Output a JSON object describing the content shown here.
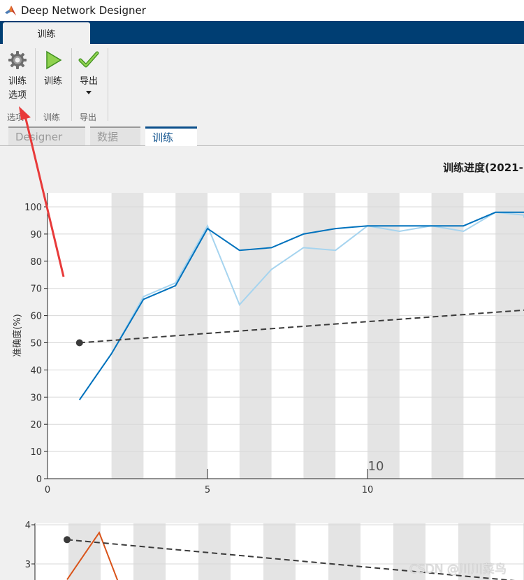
{
  "window": {
    "title": "Deep Network Designer"
  },
  "ribbon": {
    "tab_label": "训练"
  },
  "toolstrip": {
    "buttons": [
      {
        "label": "训练\n选项",
        "icon": "gear-icon",
        "group": "选项"
      },
      {
        "label": "训练",
        "icon": "play-icon",
        "group": "训练"
      },
      {
        "label": "导出",
        "icon": "checkmark-icon",
        "group": "导出"
      }
    ]
  },
  "doc_tabs": [
    {
      "label": "Designer",
      "active": false
    },
    {
      "label": "数据",
      "active": false
    },
    {
      "label": "训练",
      "active": true
    }
  ],
  "progress": {
    "title": "训练进度(2021-"
  },
  "colors": {
    "accent": "#0b4f8b",
    "ribbon": "#003e73",
    "accuracy_smoothed": "#0072bd",
    "accuracy_raw": "#a6d4ef",
    "loss": "#d95319",
    "annotation_arrow": "#e83a3a"
  },
  "chart_data": [
    {
      "type": "line",
      "ylabel": "准确度(%)",
      "xlim": [
        0,
        16
      ],
      "ylim": [
        0,
        100
      ],
      "x_ticks": [
        0,
        5,
        10
      ],
      "y_ticks": [
        0,
        10,
        20,
        30,
        40,
        50,
        60,
        70,
        80,
        90,
        100
      ],
      "epoch_band_label": "10",
      "series": [
        {
          "x": [
            1,
            2,
            3,
            4,
            5,
            6,
            7,
            8,
            9,
            10,
            11,
            12,
            13,
            14,
            15,
            16
          ],
          "values": [
            29,
            46,
            66,
            71,
            92,
            84,
            85,
            90,
            92,
            93,
            93,
            93,
            93,
            98,
            98,
            98
          ]
        },
        {
          "x": [
            1,
            2,
            3,
            4,
            5,
            6,
            7,
            8,
            9,
            10,
            11,
            12,
            13,
            14,
            15,
            16
          ],
          "values": [
            29,
            46,
            67,
            72,
            93,
            64,
            77,
            85,
            84,
            93,
            91,
            93,
            91,
            98,
            97,
            96
          ]
        },
        {
          "x": [
            1,
            16
          ],
          "values": [
            50,
            62
          ]
        }
      ],
      "grid": true
    },
    {
      "type": "line",
      "y_ticks": [
        3,
        4
      ],
      "series": [
        {
          "x": [
            0.6,
            1,
            1.5
          ],
          "values": [
            2.6,
            3.8,
            2.5
          ]
        },
        {
          "x": [
            0.6,
            16
          ],
          "values": [
            3.62,
            2.55
          ]
        }
      ]
    }
  ],
  "watermark": "CSDN @川川菜鸟"
}
